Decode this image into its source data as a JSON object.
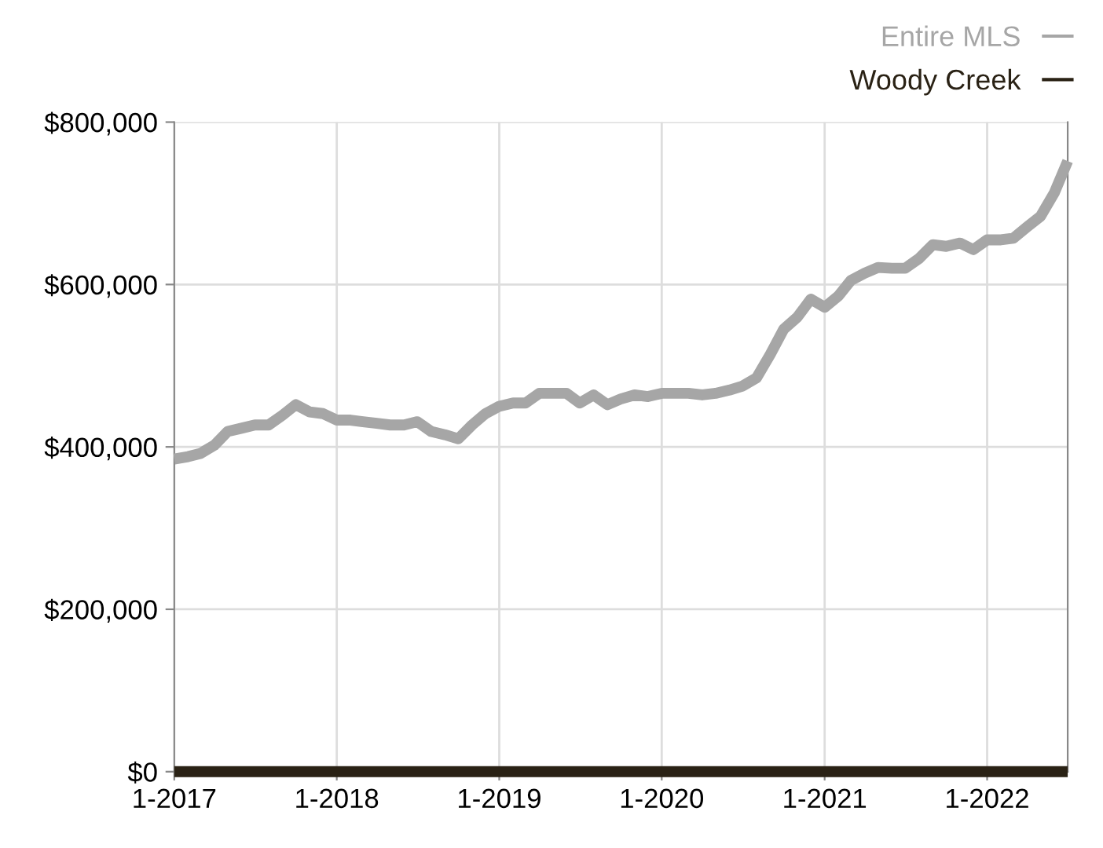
{
  "chart_data": {
    "type": "line",
    "x": [
      "2017-01",
      "2017-02",
      "2017-03",
      "2017-04",
      "2017-05",
      "2017-06",
      "2017-07",
      "2017-08",
      "2017-09",
      "2017-10",
      "2017-11",
      "2017-12",
      "2018-01",
      "2018-02",
      "2018-03",
      "2018-04",
      "2018-05",
      "2018-06",
      "2018-07",
      "2018-08",
      "2018-09",
      "2018-10",
      "2018-11",
      "2018-12",
      "2019-01",
      "2019-02",
      "2019-03",
      "2019-04",
      "2019-05",
      "2019-06",
      "2019-07",
      "2019-08",
      "2019-09",
      "2019-10",
      "2019-11",
      "2019-12",
      "2020-01",
      "2020-02",
      "2020-03",
      "2020-04",
      "2020-05",
      "2020-06",
      "2020-07",
      "2020-08",
      "2020-09",
      "2020-10",
      "2020-11",
      "2020-12",
      "2021-01",
      "2021-02",
      "2021-03",
      "2021-04",
      "2021-05",
      "2021-06",
      "2021-07",
      "2021-08",
      "2021-09",
      "2021-10",
      "2021-11",
      "2021-12",
      "2022-01",
      "2022-02",
      "2022-03",
      "2022-04",
      "2022-05",
      "2022-06",
      "2022-07"
    ],
    "series": [
      {
        "name": "Entire MLS",
        "color": "#a6a6a6",
        "values": [
          385000,
          388000,
          392000,
          402000,
          419000,
          423000,
          427000,
          427000,
          439000,
          452000,
          443000,
          441000,
          433000,
          433000,
          431000,
          429000,
          427000,
          427000,
          431000,
          419000,
          415000,
          410000,
          427000,
          441000,
          450000,
          454000,
          454000,
          466000,
          466000,
          466000,
          454000,
          464000,
          452000,
          459000,
          464000,
          462000,
          466000,
          466000,
          466000,
          464000,
          466000,
          470000,
          475000,
          485000,
          514000,
          545000,
          560000,
          582000,
          572000,
          586000,
          605000,
          614000,
          621000,
          620000,
          620000,
          632000,
          649000,
          647000,
          651000,
          643000,
          655000,
          655000,
          657000,
          671000,
          684000,
          713000,
          752000
        ]
      },
      {
        "name": "Woody Creek",
        "color": "#2a2215",
        "values": [
          0,
          0,
          0,
          0,
          0,
          0,
          0,
          0,
          0,
          0,
          0,
          0,
          0,
          0,
          0,
          0,
          0,
          0,
          0,
          0,
          0,
          0,
          0,
          0,
          0,
          0,
          0,
          0,
          0,
          0,
          0,
          0,
          0,
          0,
          0,
          0,
          0,
          0,
          0,
          0,
          0,
          0,
          0,
          0,
          0,
          0,
          0,
          0,
          0,
          0,
          0,
          0,
          0,
          0,
          0,
          0,
          0,
          0,
          0,
          0,
          0,
          0,
          0,
          0,
          0,
          0,
          0
        ]
      }
    ],
    "xlim": [
      "2017-01",
      "2022-07"
    ],
    "xticks": [
      {
        "value": "2017-01",
        "label": "1-2017"
      },
      {
        "value": "2018-01",
        "label": "1-2018"
      },
      {
        "value": "2019-01",
        "label": "1-2019"
      },
      {
        "value": "2020-01",
        "label": "1-2020"
      },
      {
        "value": "2021-01",
        "label": "1-2021"
      },
      {
        "value": "2022-01",
        "label": "1-2022"
      }
    ],
    "ylim": [
      0,
      800000
    ],
    "yticks": [
      {
        "value": 0,
        "label": "$0"
      },
      {
        "value": 200000,
        "label": "$200,000"
      },
      {
        "value": 400000,
        "label": "$400,000"
      },
      {
        "value": 600000,
        "label": "$600,000"
      },
      {
        "value": 800000,
        "label": "$800,000"
      }
    ],
    "grid": true,
    "legend": "top right",
    "line_style": "solid",
    "marker": "none"
  }
}
